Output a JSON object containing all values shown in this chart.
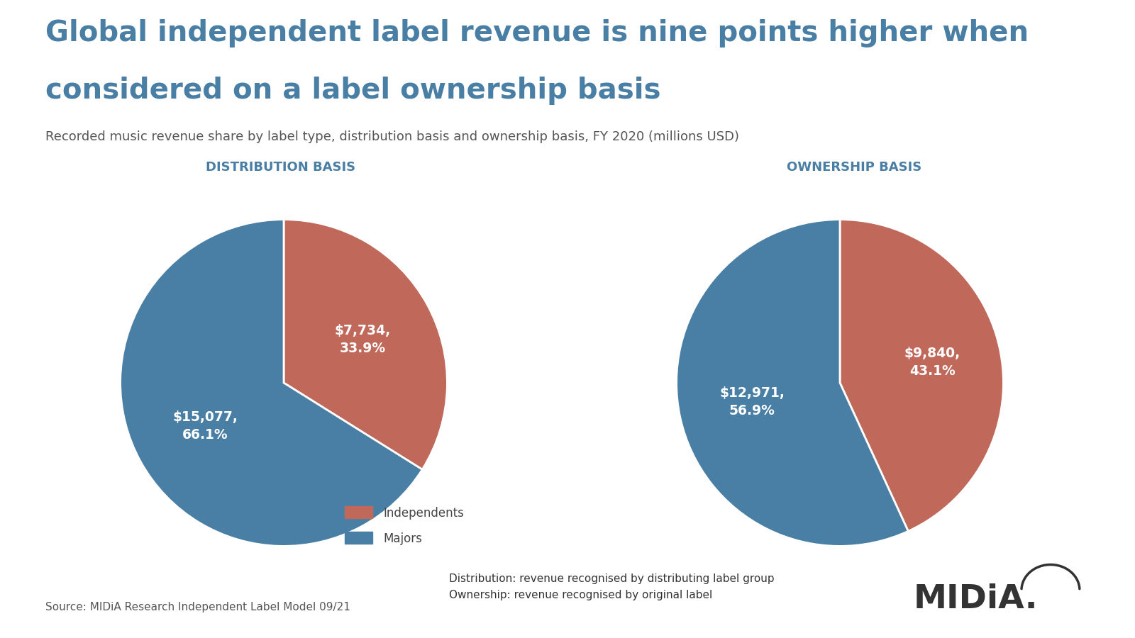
{
  "title_line1": "Global independent label revenue is nine points higher when",
  "title_line2": "considered on a label ownership basis",
  "subtitle": "Recorded music revenue share by label type, distribution basis and ownership basis, FY 2020 (millions USD)",
  "dist_title": "DISTRIBUTION BASIS",
  "own_title": "OWNERSHIP BASIS",
  "dist_values": [
    7734,
    15077
  ],
  "dist_label_indep": "$7,734,\n33.9%",
  "dist_label_majors": "$15,077,\n66.1%",
  "own_values": [
    9840,
    12971
  ],
  "own_label_indep": "$9,840,\n43.1%",
  "own_label_majors": "$12,971,\n56.9%",
  "color_independents": "#c0685a",
  "color_majors": "#4a7fa5",
  "legend_labels": [
    "Independents",
    "Majors"
  ],
  "source_text": "Source: MIDiA Research Independent Label Model 09/21",
  "note_line1": "Distribution: revenue recognised by distributing label group",
  "note_line2": "Ownership: revenue recognised by original label",
  "title_color": "#4a7fa5",
  "subtitle_color": "#555555",
  "header_text_color": "#4a7fa5",
  "header_bg_color": "#dce8f0",
  "background_color": "#ffffff",
  "separator_color": "#4a7fa5",
  "note_bg_color": "#e0e0e0",
  "source_color": "#555555",
  "label_color": "#ffffff"
}
